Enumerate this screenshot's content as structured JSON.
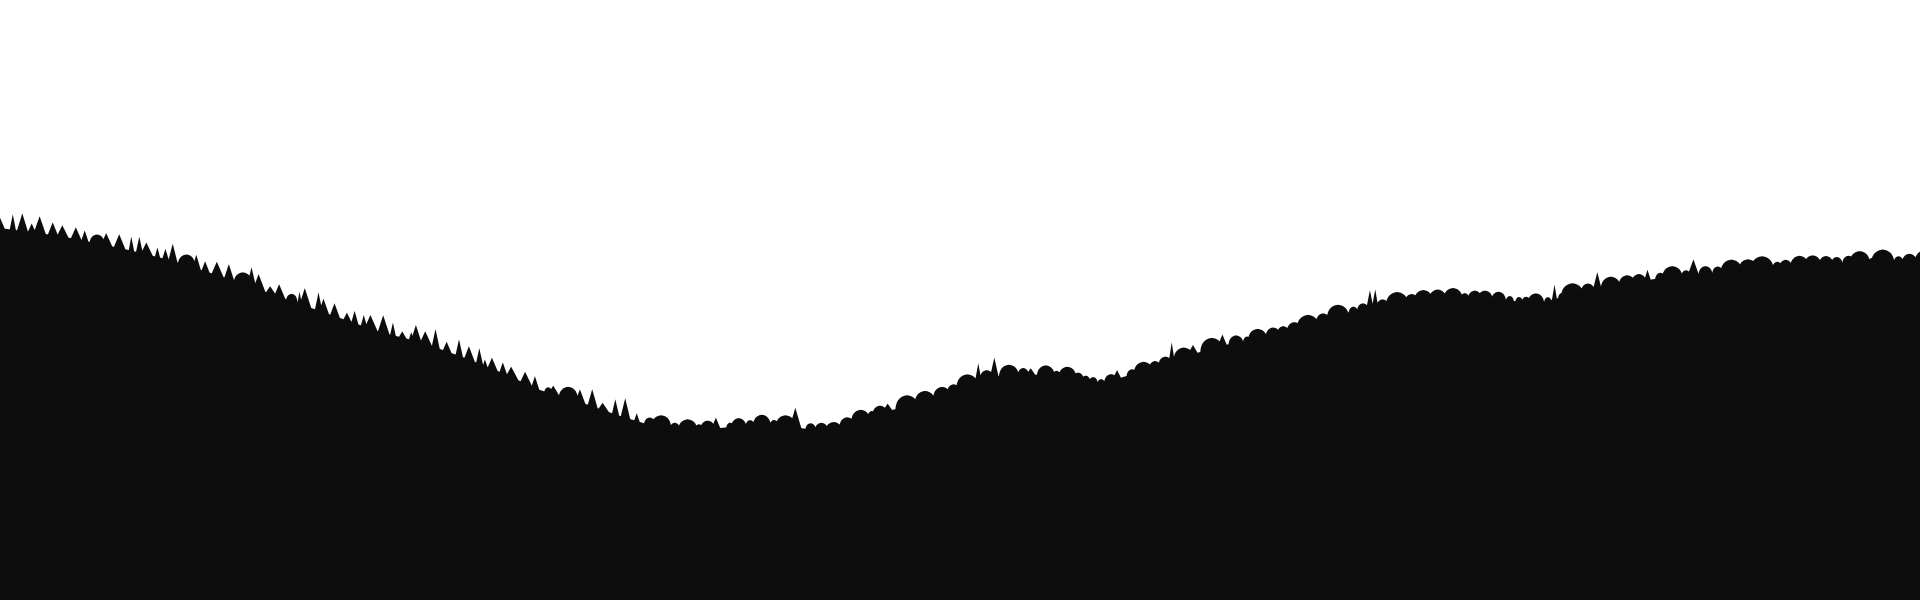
{
  "scene": {
    "sky_color": "#ffffff",
    "silhouette_color": "#0d0d0d",
    "elements": [
      "sky",
      "forested-hill-silhouette"
    ]
  }
}
